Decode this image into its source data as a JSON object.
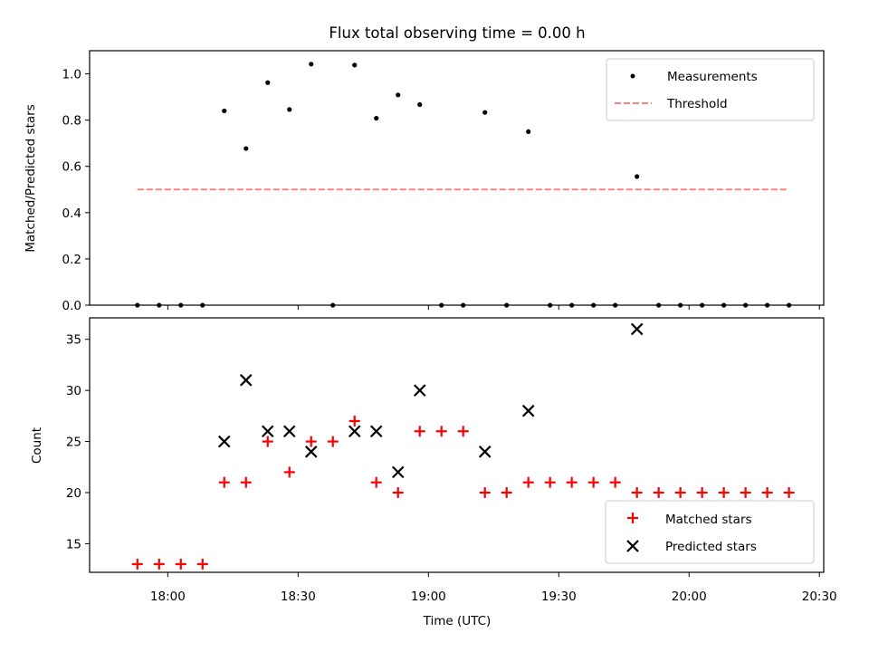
{
  "chart_data": [
    {
      "type": "scatter",
      "title": "Flux total observing time = 0.00 h",
      "xlabel": "",
      "ylabel": "Matched/Predicted stars",
      "ylim": [
        0,
        1.1
      ],
      "yticks": [
        "0.0",
        "0.2",
        "0.4",
        "0.6",
        "0.8",
        "1.0"
      ],
      "xlim": [
        "17:42",
        "20:31"
      ],
      "legend": {
        "position": "top-right",
        "entries": [
          "Measurements",
          "Threshold"
        ]
      },
      "series": [
        {
          "name": "Measurements",
          "color": "#000000",
          "marker": "dot",
          "x": [
            "17:53",
            "17:58",
            "18:03",
            "18:08",
            "18:13",
            "18:18",
            "18:23",
            "18:28",
            "18:33",
            "18:38",
            "18:43",
            "18:48",
            "18:53",
            "18:58",
            "19:03",
            "19:08",
            "19:13",
            "19:18",
            "19:23",
            "19:28",
            "19:33",
            "19:38",
            "19:43",
            "19:48",
            "19:53",
            "19:58",
            "20:03",
            "20:08",
            "20:13",
            "20:18",
            "20:23"
          ],
          "y": [
            0,
            0,
            0,
            0,
            0.84,
            0.677,
            0.962,
            0.846,
            1.042,
            0,
            1.038,
            0.808,
            0.909,
            0.867,
            0,
            0,
            0.833,
            0,
            0.75,
            0,
            0,
            0,
            0,
            0.556,
            0,
            0,
            0,
            0,
            0,
            0,
            0
          ]
        },
        {
          "name": "Threshold",
          "color": "#ff8080",
          "style": "dashed",
          "x": [
            "17:53",
            "20:23"
          ],
          "y": [
            0.5,
            0.5
          ]
        }
      ]
    },
    {
      "type": "scatter",
      "title": "",
      "xlabel": "Time (UTC)",
      "ylabel": "Count",
      "ylim": [
        12.2,
        37.1
      ],
      "yticks": [
        "15",
        "20",
        "25",
        "30",
        "35"
      ],
      "xlim": [
        "17:42",
        "20:31"
      ],
      "xticks": [
        "18:00",
        "18:30",
        "19:00",
        "19:30",
        "20:00",
        "20:30"
      ],
      "legend": {
        "position": "bottom-right",
        "entries": [
          "Matched stars",
          "Predicted stars"
        ]
      },
      "series": [
        {
          "name": "Matched stars",
          "color": "#ff0000",
          "marker": "plus",
          "x": [
            "17:53",
            "17:58",
            "18:03",
            "18:08",
            "18:13",
            "18:18",
            "18:23",
            "18:28",
            "18:33",
            "18:38",
            "18:43",
            "18:48",
            "18:53",
            "18:58",
            "19:03",
            "19:08",
            "19:13",
            "19:18",
            "19:23",
            "19:28",
            "19:33",
            "19:38",
            "19:43",
            "19:48",
            "19:53",
            "19:58",
            "20:03",
            "20:08",
            "20:13",
            "20:18",
            "20:23"
          ],
          "y": [
            13,
            13,
            13,
            13,
            21,
            21,
            25,
            22,
            25,
            25,
            27,
            21,
            20,
            26,
            26,
            26,
            20,
            20,
            21,
            21,
            21,
            21,
            21,
            20,
            20,
            20,
            20,
            20,
            20,
            20,
            20
          ]
        },
        {
          "name": "Predicted stars",
          "color": "#000000",
          "marker": "x",
          "x": [
            "18:13",
            "18:18",
            "18:23",
            "18:28",
            "18:33",
            "18:43",
            "18:48",
            "18:53",
            "18:58",
            "19:13",
            "19:23",
            "19:48"
          ],
          "y": [
            25,
            31,
            26,
            26,
            24,
            26,
            26,
            22,
            30,
            24,
            28,
            36
          ]
        }
      ]
    }
  ]
}
